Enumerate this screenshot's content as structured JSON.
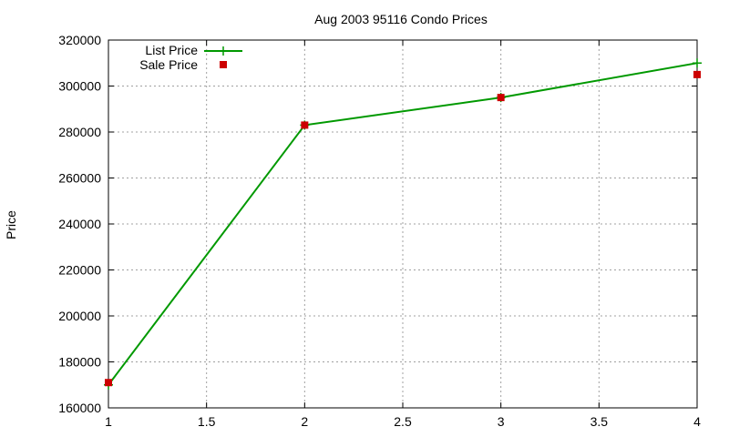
{
  "chart_data": {
    "type": "line",
    "title": "Aug 2003 95116 Condo Prices",
    "xlabel": "",
    "ylabel": "Price",
    "xlim": [
      1,
      4
    ],
    "ylim": [
      160000,
      320000
    ],
    "x_ticks": [
      1,
      1.5,
      2,
      2.5,
      3,
      3.5,
      4
    ],
    "y_ticks": [
      160000,
      180000,
      200000,
      220000,
      240000,
      260000,
      280000,
      300000,
      320000
    ],
    "grid": true,
    "legend_position": "top-left",
    "series": [
      {
        "name": "List Price",
        "style": "line with cross markers",
        "color": "#009900",
        "x": [
          1,
          2,
          3,
          4
        ],
        "y": [
          170000,
          283000,
          295000,
          310000
        ]
      },
      {
        "name": "Sale Price",
        "style": "square markers",
        "color": "#cc0000",
        "x": [
          1,
          2,
          3,
          4
        ],
        "y": [
          171000,
          283000,
          295000,
          305000
        ]
      }
    ]
  }
}
